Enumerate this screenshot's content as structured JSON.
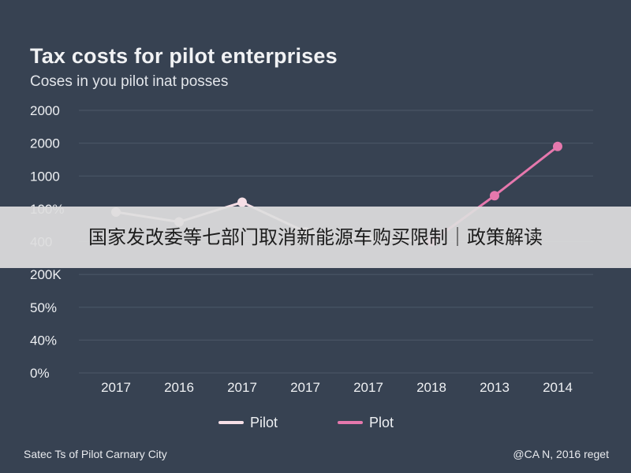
{
  "chart_data": {
    "type": "line",
    "title": "Tax costs for pilot enterprises",
    "subtitle": "Coses in you pilot inat posses",
    "categories": [
      "2017",
      "2016",
      "2017",
      "2017",
      "2017",
      "2018",
      "2013",
      "2014"
    ],
    "y_tick_labels": [
      "0%",
      "40%",
      "50%",
      "200K",
      "400",
      "100%",
      "1000",
      "2000",
      "2000"
    ],
    "ylim": [
      0,
      8
    ],
    "grid": true,
    "legend_position": "bottom-center",
    "series": [
      {
        "name": "Pilot",
        "color": "#f6dfe6",
        "values": [
          4.9,
          4.6,
          5.2,
          4.3,
          4.1,
          4.0,
          null,
          null
        ]
      },
      {
        "name": "Plot",
        "color": "#e678ad",
        "values": [
          null,
          null,
          null,
          null,
          null,
          4.0,
          5.4,
          6.9
        ]
      }
    ]
  },
  "banner": {
    "text": "国家发改委等七部门取消新能源车购买限制｜政策解读"
  },
  "footer": {
    "left": "Satec Ts of Pilot Carnary City",
    "right": "@CA N, 2016 reget"
  }
}
